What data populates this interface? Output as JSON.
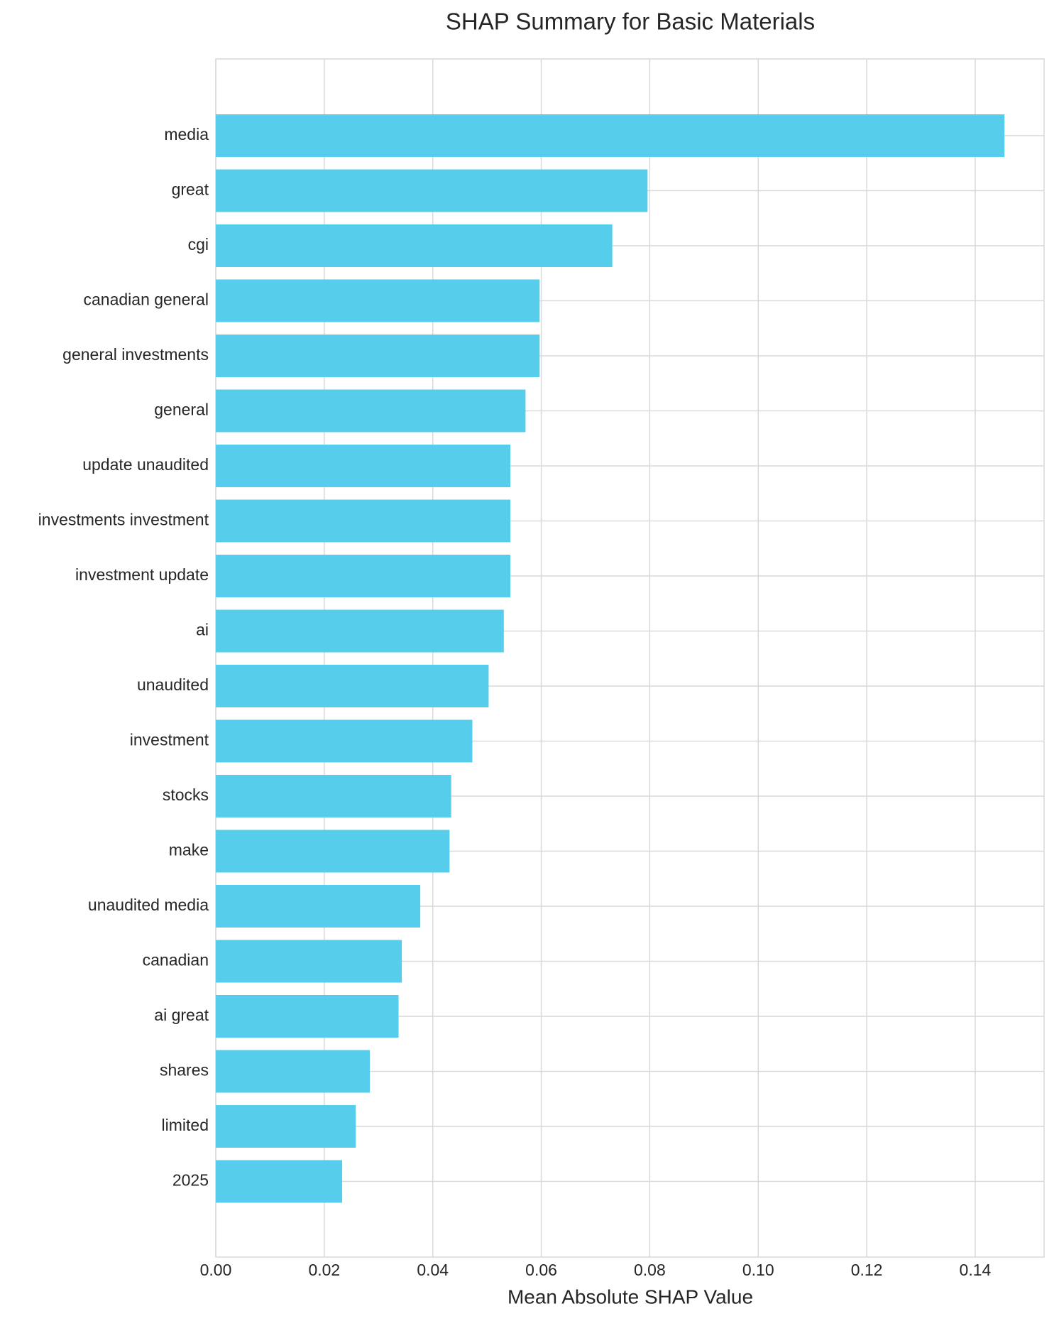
{
  "chart_data": {
    "type": "barh",
    "title": "SHAP Summary for Basic Materials",
    "xlabel": "Mean Absolute SHAP Value",
    "categories": [
      "media",
      "great",
      "cgi",
      "canadian general",
      "general investments",
      "general",
      "update unaudited",
      "investments investment",
      "investment update",
      "ai",
      "unaudited",
      "investment",
      "stocks",
      "make",
      "unaudited media",
      "canadian",
      "ai great",
      "shares",
      "limited",
      "2025"
    ],
    "values": [
      0.1454,
      0.0796,
      0.0731,
      0.0597,
      0.0597,
      0.0571,
      0.0543,
      0.0543,
      0.0543,
      0.0531,
      0.0503,
      0.0473,
      0.0434,
      0.0431,
      0.0377,
      0.0343,
      0.0337,
      0.0284,
      0.0258,
      0.0233
    ],
    "color": "#56cdea",
    "xlim": [
      0,
      0.1527
    ],
    "xticks": [
      {
        "value": 0,
        "label": "0.00"
      },
      {
        "value": 0.02,
        "label": "0.02"
      },
      {
        "value": 0.04,
        "label": "0.04"
      },
      {
        "value": 0.06,
        "label": "0.06"
      },
      {
        "value": 0.08,
        "label": "0.08"
      },
      {
        "value": 0.1,
        "label": "0.10"
      },
      {
        "value": 0.12,
        "label": "0.12"
      },
      {
        "value": 0.14,
        "label": "0.14"
      }
    ],
    "grid": true
  }
}
